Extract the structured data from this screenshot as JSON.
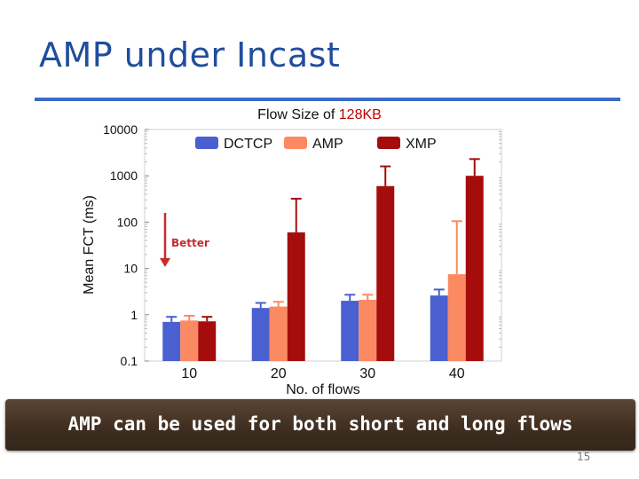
{
  "slide": {
    "title": "AMP under Incast",
    "banner": "AMP can be used for both short and long flows",
    "page_number": "15"
  },
  "colors": {
    "title": "#1f4e9c",
    "rule": "#3a6bc8",
    "highlight": "#c00000",
    "arrow": "#d32f2f"
  },
  "chart_data": {
    "type": "bar",
    "title_prefix": "Flow Size of ",
    "title_highlight": "128KB",
    "xlabel": "No. of flows",
    "ylabel": "Mean FCT (ms)",
    "yscale": "log",
    "ylim": [
      0.1,
      10000
    ],
    "yticks": [
      0.1,
      1,
      10,
      100,
      1000,
      10000
    ],
    "ytick_labels": [
      "0.1",
      "1",
      "10",
      "100",
      "1000",
      "10000"
    ],
    "categories": [
      "10",
      "20",
      "30",
      "40"
    ],
    "legend_position": "top",
    "series": [
      {
        "name": "DCTCP",
        "color": "#4a5fd0",
        "values": [
          0.7,
          1.4,
          2.0,
          2.6
        ],
        "err_high": [
          0.9,
          1.8,
          2.7,
          3.5
        ]
      },
      {
        "name": "AMP",
        "color": "#fb8a62",
        "values": [
          0.75,
          1.5,
          2.1,
          7.5
        ],
        "err_high": [
          0.95,
          1.9,
          2.7,
          105
        ]
      },
      {
        "name": "XMP",
        "color": "#a50d0d",
        "values": [
          0.72,
          60,
          600,
          1000
        ],
        "err_high": [
          0.9,
          320,
          1600,
          2300
        ]
      }
    ],
    "annotation": {
      "text": "Better",
      "direction": "down",
      "color": "#c42d2d"
    }
  }
}
